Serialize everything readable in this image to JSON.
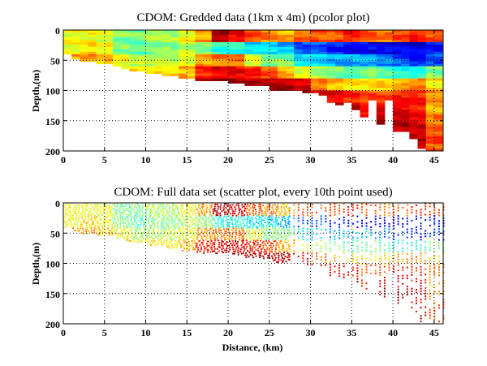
{
  "chart_data": [
    {
      "type": "heatmap",
      "title": "CDOM: Gredded data (1km x 4m) (pcolor plot)",
      "xlabel": "",
      "ylabel": "Depth,(m)",
      "xlim": [
        0,
        46
      ],
      "ylim": [
        200,
        0
      ],
      "xticks": [
        "0",
        "5",
        "10",
        "15",
        "20",
        "25",
        "30",
        "35",
        "40",
        "45"
      ],
      "yticks": [
        "0",
        "50",
        "100",
        "150",
        "200"
      ],
      "grid": true,
      "colormap": "jet",
      "value_scale_note_free": true,
      "bin_km_start": [
        0,
        2,
        4,
        6,
        8,
        10,
        12,
        14,
        16,
        18,
        20,
        22,
        24,
        26,
        28,
        30,
        32,
        34,
        36,
        38,
        40,
        42,
        44
      ],
      "depth_bin_start_m": [
        0,
        20,
        40,
        60,
        80,
        100,
        120,
        140,
        160,
        180
      ],
      "values": [
        [
          0.62,
          0.62,
          0.72
        ],
        [
          0.62,
          0.65,
          0.72
        ],
        [
          0.6,
          0.62,
          0.68
        ],
        [
          0.5,
          0.5,
          0.62,
          0.65
        ],
        [
          0.5,
          0.45,
          0.55,
          0.65
        ],
        [
          0.55,
          0.5,
          0.55,
          0.65
        ],
        [
          0.55,
          0.5,
          0.55,
          0.65
        ],
        [
          0.62,
          0.55,
          0.6,
          0.7
        ],
        [
          0.72,
          0.5,
          0.72,
          0.85,
          0.9
        ],
        [
          0.95,
          0.4,
          0.75,
          0.9,
          0.95
        ],
        [
          0.9,
          0.4,
          0.75,
          0.9,
          0.95
        ],
        [
          0.8,
          0.35,
          0.6,
          0.85,
          0.95
        ],
        [
          0.75,
          0.35,
          0.5,
          0.8,
          0.95
        ],
        [
          0.7,
          0.3,
          0.5,
          0.7,
          0.95
        ],
        [
          0.78,
          0.2,
          0.35,
          0.6,
          0.9,
          0.95
        ],
        [
          0.8,
          0.2,
          0.35,
          0.55,
          0.75,
          0.9
        ],
        [
          0.8,
          0.15,
          0.3,
          0.5,
          0.7,
          0.9,
          0.95
        ],
        [
          0.85,
          0.12,
          0.3,
          0.45,
          0.65,
          0.85,
          0.95,
          0.95
        ],
        [
          0.8,
          0.12,
          0.3,
          0.5,
          0.65,
          0.8,
          0.85,
          0.9
        ],
        [
          0.75,
          0.1,
          0.25,
          0.45,
          0.65,
          0.8,
          0.9,
          0.95
        ],
        [
          0.8,
          0.1,
          0.2,
          0.4,
          0.7,
          0.85,
          0.9,
          0.95,
          0.95
        ],
        [
          0.85,
          0.1,
          0.15,
          0.4,
          0.75,
          0.85,
          0.85,
          0.9,
          0.92,
          0.95
        ],
        [
          0.8,
          0.15,
          0.2,
          0.5,
          0.65,
          0.75,
          0.7,
          0.75,
          0.8,
          0.8
        ]
      ],
      "bottom_depth_m_per_km": [
        40,
        45,
        50,
        50,
        53,
        53,
        57,
        62,
        65,
        65,
        70,
        70,
        74,
        74,
        78,
        78,
        82,
        82,
        82,
        82,
        86,
        86,
        89,
        89,
        92,
        97,
        97,
        97,
        97,
        102,
        102,
        106,
        120,
        124,
        120,
        131,
        141,
        116,
        154,
        114,
        166,
        166,
        180,
        196,
        198,
        198
      ]
    },
    {
      "type": "scatter",
      "title": "CDOM: Full data set (scatter plot, every 10th point used)",
      "xlabel": "Distance, (km)",
      "ylabel": "Depth,(m)",
      "xlim": [
        0,
        46
      ],
      "ylim": [
        200,
        0
      ],
      "xticks": [
        "0",
        "5",
        "10",
        "15",
        "20",
        "25",
        "30",
        "35",
        "40",
        "45"
      ],
      "yticks": [
        "0",
        "50",
        "100",
        "150",
        "200"
      ],
      "grid": true,
      "colormap": "jet"
    }
  ]
}
